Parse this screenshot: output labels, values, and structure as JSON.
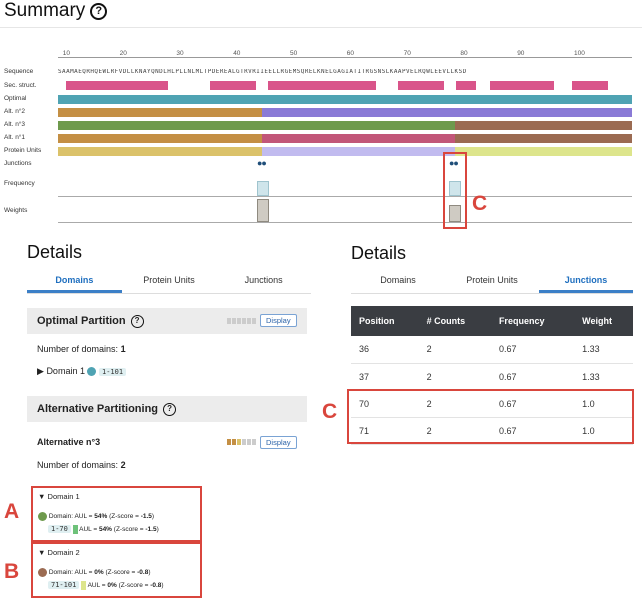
{
  "summary": {
    "title": "Summary",
    "help": "?"
  },
  "viewer": {
    "ruler_ticks": [
      "10",
      "20",
      "30",
      "40",
      "50",
      "60",
      "70",
      "80",
      "90",
      "100"
    ],
    "sequence": "SAAMAEQRHQEWLRFVDLLKNAYQNDLHLPLLNLMLTPDEREALGTRVRIIEELLRGEMSQRELKNELGAGIATITRGSNSLKAAPVELRQWLEEVLLKSD",
    "labels": [
      "Sequence",
      "Sec. struct.",
      "Optimal",
      "Alt. n°2",
      "Alt. n°3",
      "Alt. n°1",
      "Protein Units",
      "Junctions",
      "Frequency",
      "Weights"
    ],
    "colors": {
      "helix": "#d9548a",
      "teal": "#4fa3b3",
      "olive": "#c48f44",
      "purple": "#8a7ad6",
      "green": "#6e9a4d",
      "brown": "#9b6b52",
      "magenta": "#c25679",
      "yellow": "#dbc26a",
      "lavender": "#c1bbef",
      "lime": "#dde58c",
      "dots": "#1f4e79",
      "freq": "#cfe5eb",
      "weight": "#cfcbc3",
      "annotation": "#d9463d"
    }
  },
  "annotations": {
    "a": "A",
    "b": "B",
    "c": "C"
  },
  "left": {
    "title": "Details",
    "tabs": [
      "Domains",
      "Protein Units",
      "Junctions"
    ],
    "optimal": {
      "title": "Optimal Partition",
      "display": "Display",
      "count_label": "Number of domains:",
      "count": "1",
      "domain_name": "Domain 1",
      "domain_range": "1-101"
    },
    "alternative": {
      "title": "Alternative Partitioning",
      "name": "Alternative n°3",
      "display": "Display",
      "count_label": "Number of domains:",
      "count": "2",
      "domains": [
        {
          "name": "Domain 1",
          "info_prefix": "Domain: AUL =",
          "aul": "54%",
          "z_prefix": "(Z-score =",
          "z": "-1.5",
          "z_suffix": ")",
          "range": "1-70",
          "aul2_prefix": "AUL =",
          "aul2": "54%"
        },
        {
          "name": "Domain 2",
          "info_prefix": "Domain: AUL =",
          "aul": "0%",
          "z_prefix": "(Z-score =",
          "z": "-0.8",
          "z_suffix": ")",
          "range": "71-101",
          "aul2_prefix": "AUL =",
          "aul2": "0%"
        }
      ]
    }
  },
  "right": {
    "title": "Details",
    "tabs": [
      "Domains",
      "Protein Units",
      "Junctions"
    ],
    "table": {
      "headers": [
        "Position",
        "# Counts",
        "Frequency",
        "Weight"
      ],
      "rows": [
        [
          "36",
          "2",
          "0.67",
          "1.33"
        ],
        [
          "37",
          "2",
          "0.67",
          "1.33"
        ],
        [
          "70",
          "2",
          "0.67",
          "1.0"
        ],
        [
          "71",
          "2",
          "0.67",
          "1.0"
        ]
      ]
    }
  }
}
